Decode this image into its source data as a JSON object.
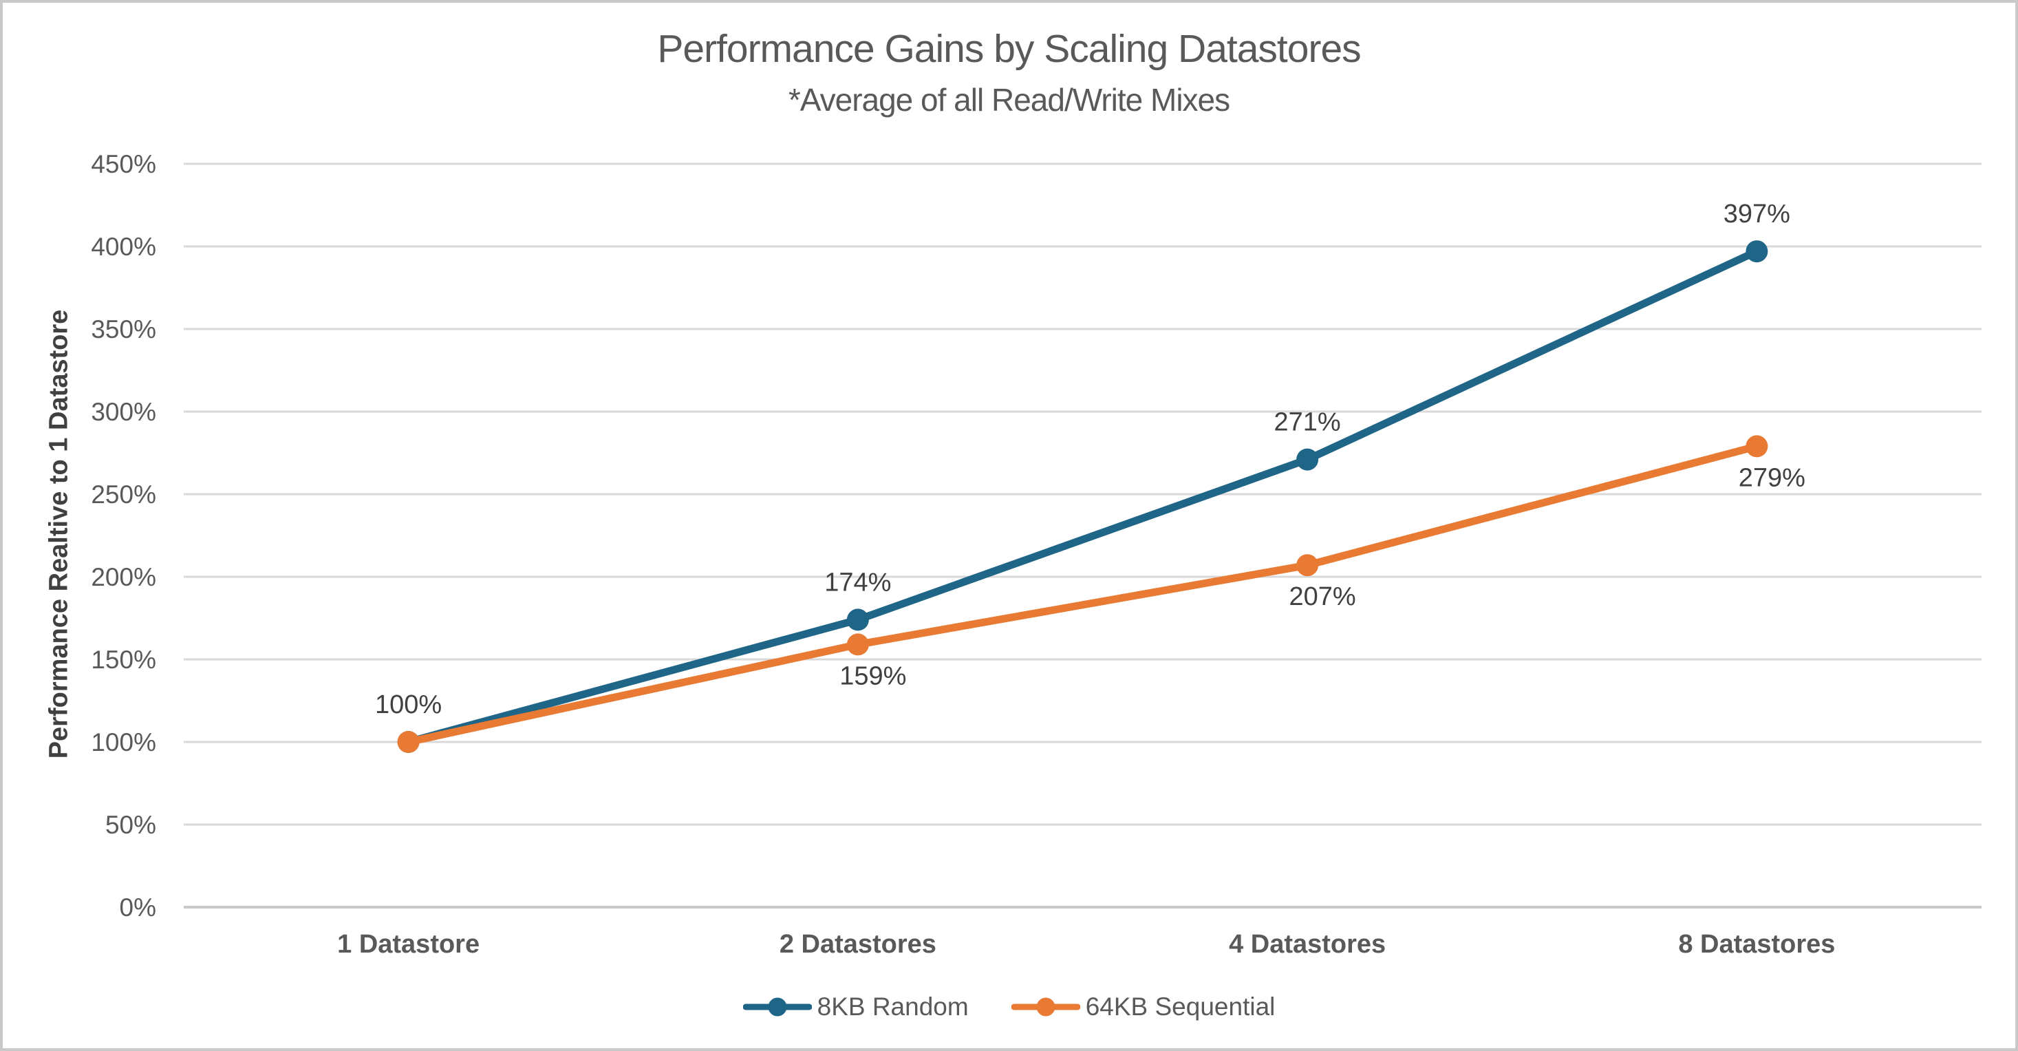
{
  "page": {
    "background": "#ffffff",
    "border_color": "#c9c9c9"
  },
  "colors": {
    "title_text": "#595959",
    "axis_text": "#595959",
    "data_label_text": "#404040",
    "axis_title_text": "#404040",
    "gridline": "#D9D9D9",
    "baseline": "#C8C8C8",
    "series_blue": "#1F6587",
    "series_orange": "#E87A33"
  },
  "chart_data": {
    "type": "line",
    "title": "Performance Gains by Scaling Datastores",
    "subtitle": "*Average of all Read/Write Mixes",
    "xlabel": "",
    "ylabel": "Performance Realtive to 1 Datastore",
    "categories": [
      "1 Datastore",
      "2 Datastores",
      "4 Datastores",
      "8 Datastores"
    ],
    "series": [
      {
        "name": "8KB Random",
        "color": "#1F6587",
        "values": [
          100,
          174,
          271,
          397
        ],
        "data_labels": [
          "100%",
          "174%",
          "271%",
          "397%"
        ],
        "label_position": "above"
      },
      {
        "name": "64KB Sequential",
        "color": "#E87A33",
        "values": [
          100,
          159,
          207,
          279
        ],
        "data_labels": [
          null,
          "159%",
          "207%",
          "279%"
        ],
        "label_position": "below"
      }
    ],
    "ylim": [
      0,
      450
    ],
    "ytick_step": 50,
    "ytick_labels": [
      "0%",
      "50%",
      "100%",
      "150%",
      "200%",
      "250%",
      "300%",
      "350%",
      "400%",
      "450%"
    ],
    "grid": true,
    "vertical_grid": false,
    "legend_position": "bottom",
    "marker": "circle"
  }
}
